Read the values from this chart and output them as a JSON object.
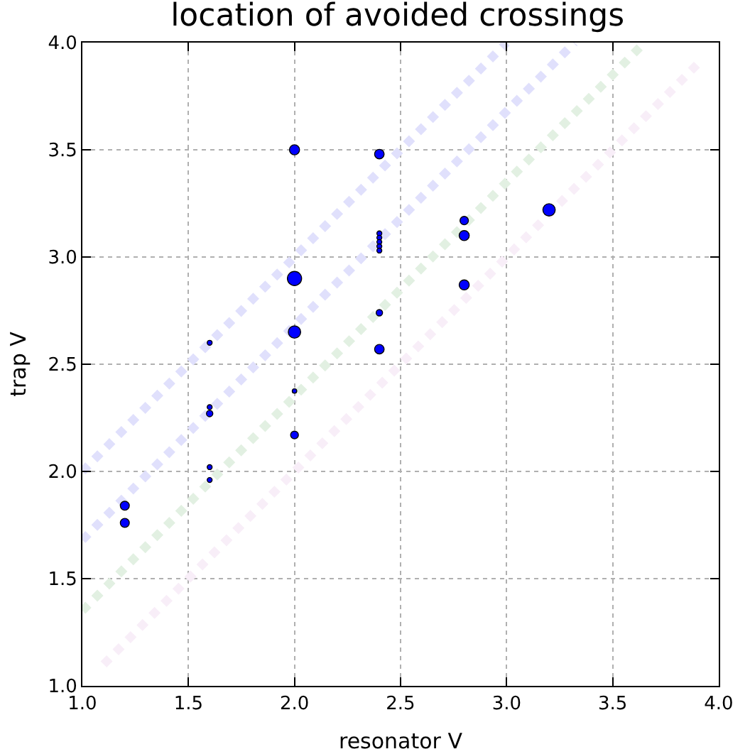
{
  "chart_data": {
    "type": "bubble",
    "title": "location of avoided crossings",
    "xlabel": "resonator V",
    "ylabel": "trap V",
    "xlim": [
      1.0,
      4.0
    ],
    "xticks": [
      {
        "value": 1,
        "label": "1.0"
      },
      {
        "value": 1.5,
        "label": "1.5"
      },
      {
        "value": 2,
        "label": "2.0"
      },
      {
        "value": 2.5,
        "label": "2.5"
      },
      {
        "value": 3,
        "label": "3.0"
      },
      {
        "value": 3.5,
        "label": "3.5"
      },
      {
        "value": 4,
        "label": "4.0"
      }
    ],
    "ylim": [
      1.0,
      4.0
    ],
    "yticks": [
      {
        "value": 1,
        "label": "1.0"
      },
      {
        "value": 1.5,
        "label": "1.5"
      },
      {
        "value": 2,
        "label": "2.0"
      },
      {
        "value": 2.5,
        "label": "2.5"
      },
      {
        "value": 3,
        "label": "3.0"
      },
      {
        "value": 3.5,
        "label": "3.5"
      },
      {
        "value": 4,
        "label": "4.0"
      }
    ],
    "grid": true,
    "marker": "circle",
    "series": [
      {
        "type": "line",
        "color": "#e0e0fc",
        "line_style": "dotted",
        "marker": "none",
        "x": [
          1.0,
          3.0
        ],
        "values": [
          2.0,
          4.0
        ]
      },
      {
        "type": "line",
        "color": "#e0e0fc",
        "line_style": "dotted",
        "marker": "none",
        "x": [
          1.0,
          3.32
        ],
        "values": [
          1.68,
          4.0
        ]
      },
      {
        "type": "line",
        "color": "#e2f0e2",
        "line_style": "dotted",
        "marker": "none",
        "x": [
          1.0,
          3.65
        ],
        "values": [
          1.35,
          4.0
        ]
      },
      {
        "type": "line",
        "color": "#f8eef8",
        "line_style": "dotted",
        "marker": "none",
        "x": [
          1.1,
          3.9
        ],
        "values": [
          1.1,
          3.9
        ]
      },
      {
        "color": "#0000ff",
        "x": [
          2.0,
          2.4,
          2.4,
          2.4,
          2.4,
          2.4,
          2.4,
          2.0,
          2.0,
          1.6,
          2.4,
          2.4,
          2.8,
          2.8,
          2.8,
          3.2,
          1.6,
          1.6,
          2.0,
          2.0,
          1.6,
          1.6,
          1.2,
          1.2
        ],
        "values": [
          3.5,
          3.48,
          3.11,
          3.09,
          3.07,
          3.05,
          3.03,
          2.9,
          2.65,
          2.6,
          2.74,
          2.57,
          3.17,
          3.1,
          2.87,
          3.22,
          2.3,
          2.27,
          2.375,
          2.17,
          2.02,
          1.96,
          1.84,
          1.76
        ],
        "sizes": [
          0.5,
          0.45,
          0.12,
          0.12,
          0.12,
          0.12,
          0.12,
          1,
          0.75,
          0.12,
          0.2,
          0.45,
          0.35,
          0.5,
          0.5,
          0.75,
          0.12,
          0.2,
          0.1,
          0.3,
          0.12,
          0.12,
          0.4,
          0.4
        ]
      }
    ]
  }
}
